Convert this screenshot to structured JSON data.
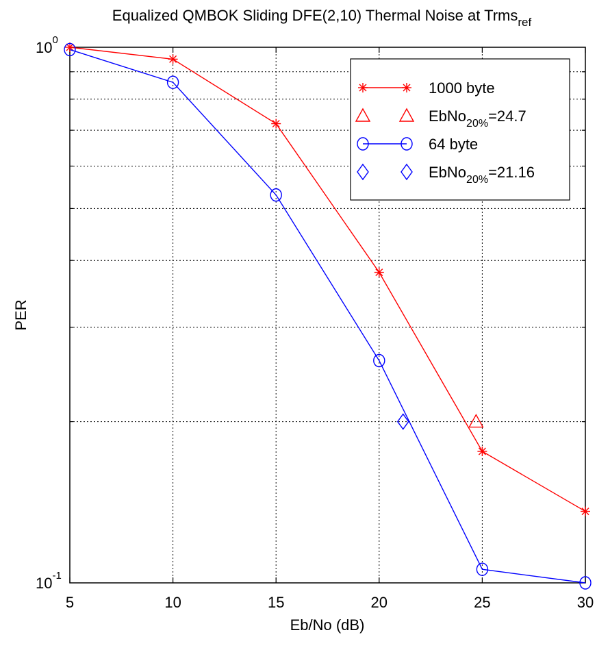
{
  "chart_data": {
    "type": "line",
    "title": "Equalized QMBOK Sliding DFE(2,10) Thermal Noise at Trms",
    "title_subscript": "ref",
    "xlabel": "Eb/No (dB)",
    "ylabel": "PER",
    "xlim": [
      5,
      30
    ],
    "ylim": [
      0.1,
      1
    ],
    "yscale": "log",
    "grid": true,
    "legend_position": "top-right",
    "xticks": [
      "5",
      "10",
      "15",
      "20",
      "25",
      "30"
    ],
    "yticks": [
      {
        "base": "10",
        "exp": "0"
      },
      {
        "base": "10",
        "exp": "-1"
      }
    ],
    "series": [
      {
        "name": "1000 byte",
        "color": "#ff0000",
        "marker": "asterisk",
        "x": [
          5,
          10,
          15,
          20,
          25,
          30
        ],
        "y": [
          1.0,
          0.95,
          0.72,
          0.38,
          0.176,
          0.136
        ]
      },
      {
        "name": "EbNo",
        "name_subscript": "20%",
        "name_suffix": "=24.7",
        "color": "#ff0000",
        "marker": "triangle",
        "x": [
          24.7
        ],
        "y": [
          0.2
        ]
      },
      {
        "name": "64 byte",
        "color": "#0000ff",
        "marker": "circle",
        "x": [
          5,
          10,
          15,
          20,
          25,
          30
        ],
        "y": [
          0.99,
          0.86,
          0.53,
          0.26,
          0.106,
          0.1
        ]
      },
      {
        "name": "EbNo",
        "name_subscript": "20%",
        "name_suffix": "=21.16",
        "color": "#0000ff",
        "marker": "diamond",
        "x": [
          21.16
        ],
        "y": [
          0.2
        ]
      }
    ]
  }
}
